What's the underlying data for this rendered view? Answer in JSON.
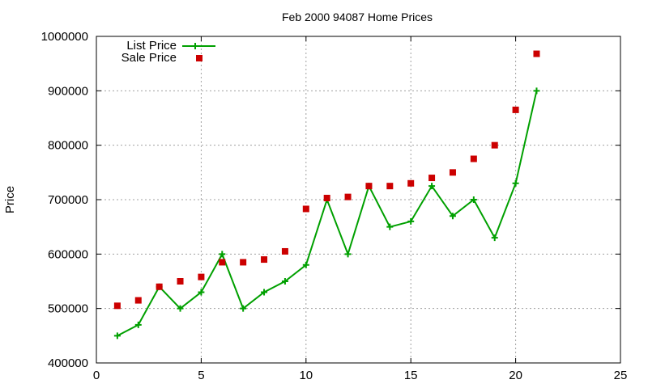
{
  "chart_data": {
    "type": "line",
    "title": "Feb 2000 94087 Home Prices",
    "xlabel": "",
    "ylabel": "Price",
    "xlim": [
      0,
      25
    ],
    "ylim": [
      400000,
      1000000
    ],
    "x_ticks": [
      0,
      5,
      10,
      15,
      20,
      25
    ],
    "y_ticks": [
      400000,
      500000,
      600000,
      700000,
      800000,
      900000,
      1000000
    ],
    "grid": true,
    "legend_position": "top-left",
    "x": [
      1,
      2,
      3,
      4,
      5,
      6,
      7,
      8,
      9,
      10,
      11,
      12,
      13,
      14,
      15,
      16,
      17,
      18,
      19,
      20,
      21
    ],
    "series": [
      {
        "name": "List Price",
        "style": "linespoints",
        "color": "#00a000",
        "marker": "plus",
        "values": [
          450000,
          470000,
          540000,
          500000,
          530000,
          600000,
          500000,
          530000,
          550000,
          580000,
          700000,
          600000,
          725000,
          650000,
          660000,
          725000,
          670000,
          700000,
          630000,
          730000,
          900000
        ]
      },
      {
        "name": "Sale Price",
        "style": "points",
        "color": "#cc0000",
        "marker": "square",
        "values": [
          505000,
          515000,
          540000,
          550000,
          558000,
          585000,
          585000,
          590000,
          605000,
          683000,
          703000,
          705000,
          725000,
          725000,
          730000,
          740000,
          750000,
          775000,
          800000,
          865000,
          968000
        ]
      }
    ]
  }
}
